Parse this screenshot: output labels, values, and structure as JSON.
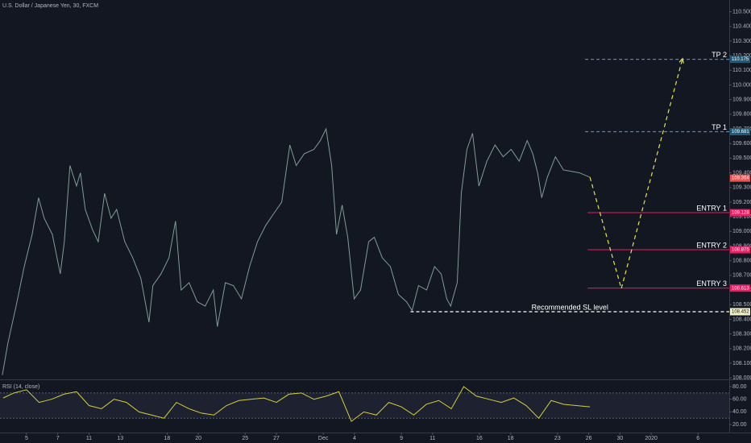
{
  "chart_data": [
    {
      "type": "line",
      "title": "U.S. Dollar / Japanese Yen, 30, FXCM",
      "color": "#7f9c97",
      "x": [
        -1.55,
        -1.19,
        -0.67,
        -0.15,
        0.36,
        0.77,
        1.13,
        1.65,
        2.16,
        2.42,
        2.78,
        3.2,
        3.45,
        3.76,
        4.23,
        4.59,
        5.0,
        5.41,
        5.77,
        6.29,
        6.8,
        7.32,
        7.84,
        8.09,
        8.61,
        9.12,
        9.54,
        9.9,
        10.41,
        10.93,
        11.44,
        11.96,
        12.22,
        12.73,
        13.25,
        13.76,
        14.28,
        14.79,
        15.31,
        15.82,
        16.34,
        16.86,
        17.27,
        17.78,
        18.4,
        18.81,
        19.18,
        19.54,
        19.85,
        20.21,
        20.57,
        20.98,
        21.39,
        21.91,
        22.27,
        22.78,
        23.3,
        23.81,
        24.33,
        24.69,
        25.1,
        25.62,
        26.13,
        26.55,
        26.91,
        27.16,
        27.58,
        27.84,
        28.2,
        28.56,
        28.97,
        29.48,
        30.0,
        30.52,
        31.03,
        31.55,
        32.06,
        32.42,
        32.73,
        32.99,
        33.35,
        33.87,
        34.38,
        34.9,
        35.41,
        36.08
      ],
      "values": [
        108.02,
        108.24,
        108.49,
        108.76,
        108.98,
        109.23,
        109.09,
        108.98,
        108.71,
        108.93,
        109.45,
        109.31,
        109.4,
        109.15,
        109.01,
        108.93,
        109.26,
        109.09,
        109.15,
        108.93,
        108.82,
        108.68,
        108.38,
        108.63,
        108.71,
        108.82,
        109.07,
        108.6,
        108.65,
        108.52,
        108.49,
        108.6,
        108.35,
        108.65,
        108.63,
        108.54,
        108.76,
        108.93,
        109.04,
        109.12,
        109.2,
        109.59,
        109.45,
        109.53,
        109.56,
        109.62,
        109.7,
        109.45,
        108.98,
        109.18,
        108.96,
        108.54,
        108.6,
        108.93,
        108.96,
        108.82,
        108.76,
        108.57,
        108.52,
        108.46,
        108.63,
        108.6,
        108.76,
        108.71,
        108.54,
        108.49,
        108.65,
        109.26,
        109.56,
        109.67,
        109.31,
        109.48,
        109.59,
        109.51,
        109.56,
        109.48,
        109.62,
        109.53,
        109.4,
        109.23,
        109.37,
        109.51,
        109.42,
        109.41,
        109.4,
        109.37
      ],
      "xlim": [
        -1.7,
        45
      ],
      "xticks": [
        {
          "value": 0,
          "label": "5"
        },
        {
          "value": 2,
          "label": "7"
        },
        {
          "value": 4,
          "label": "11"
        },
        {
          "value": 6,
          "label": "13"
        },
        {
          "value": 9,
          "label": "18"
        },
        {
          "value": 11,
          "label": "20"
        },
        {
          "value": 14,
          "label": "25"
        },
        {
          "value": 16,
          "label": "27"
        },
        {
          "value": 19,
          "label": "Dec"
        },
        {
          "value": 21,
          "label": "4"
        },
        {
          "value": 24,
          "label": "9"
        },
        {
          "value": 26,
          "label": "11"
        },
        {
          "value": 29,
          "label": "16"
        },
        {
          "value": 31,
          "label": "18"
        },
        {
          "value": 34,
          "label": "23"
        },
        {
          "value": 36,
          "label": "26"
        },
        {
          "value": 38,
          "label": "30"
        },
        {
          "value": 40,
          "label": "2020"
        },
        {
          "value": 43,
          "label": "6"
        }
      ],
      "ylim": [
        107.99,
        110.58
      ],
      "yticks": [
        {
          "value": 108,
          "label": "108.000"
        },
        {
          "value": 108.1,
          "label": "108.100"
        },
        {
          "value": 108.2,
          "label": "108.200"
        },
        {
          "value": 108.3,
          "label": "108.300"
        },
        {
          "value": 108.4,
          "label": "108.400"
        },
        {
          "value": 108.5,
          "label": "108.500"
        },
        {
          "value": 108.6,
          "label": "108.600"
        },
        {
          "value": 108.7,
          "label": "108.700"
        },
        {
          "value": 108.8,
          "label": "108.800"
        },
        {
          "value": 108.9,
          "label": "108.900"
        },
        {
          "value": 109,
          "label": "109.000"
        },
        {
          "value": 109.1,
          "label": "109.100"
        },
        {
          "value": 109.2,
          "label": "109.200"
        },
        {
          "value": 109.3,
          "label": "109.300"
        },
        {
          "value": 109.4,
          "label": "109.400"
        },
        {
          "value": 109.5,
          "label": "109.500"
        },
        {
          "value": 109.6,
          "label": "109.600"
        },
        {
          "value": 109.7,
          "label": "109.700"
        },
        {
          "value": 109.8,
          "label": "109.800"
        },
        {
          "value": 109.9,
          "label": "109.900"
        },
        {
          "value": 110,
          "label": "110.000"
        },
        {
          "value": 110.1,
          "label": "110.100"
        },
        {
          "value": 110.2,
          "label": "110.200"
        },
        {
          "value": 110.3,
          "label": "110.300"
        },
        {
          "value": 110.4,
          "label": "110.400"
        },
        {
          "value": 110.5,
          "label": "110.500"
        }
      ],
      "last_price": 109.364,
      "last_price_color": "#ef5350",
      "levels": [
        {
          "label": "TP 2",
          "value": 110.175,
          "start": 35.77,
          "style": "dashed",
          "color": "#4f86c6",
          "box_color": "#1e5a7a"
        },
        {
          "label": "TP 1",
          "value": 109.681,
          "start": 35.77,
          "style": "dashed",
          "color": "#4f86c6",
          "box_color": "#1e5a7a"
        },
        {
          "label": "ENTRY 1",
          "value": 109.128,
          "start": 35.93,
          "style": "solid",
          "color": "#e91e63",
          "box_color": "#e91e63"
        },
        {
          "label": "ENTRY 2",
          "value": 108.875,
          "start": 35.93,
          "style": "solid",
          "color": "#e91e63",
          "box_color": "#e91e63"
        },
        {
          "label": "ENTRY 3",
          "value": 108.613,
          "start": 35.93,
          "style": "solid",
          "color": "#e91e63",
          "box_color": "#e91e63"
        },
        {
          "label": "Recommended SL level",
          "value": 108.452,
          "start": 24.59,
          "style": "dashed",
          "color": "#ffffff",
          "box_color": "#f3f0c8"
        }
      ],
      "projection": {
        "x": [
          36.08,
          38.09,
          42.01
        ],
        "values": [
          109.37,
          108.61,
          110.18
        ],
        "color": "#e6e34a"
      }
    },
    {
      "type": "line",
      "title": "RSI (14, close)",
      "color": "#d4cf3a",
      "x": [
        -1.5,
        -0.8,
        0,
        0.8,
        1.6,
        2.4,
        3.2,
        4,
        4.8,
        5.6,
        6.4,
        7.2,
        8,
        8.8,
        9.6,
        10.4,
        11.2,
        12,
        12.8,
        13.6,
        14.4,
        15.2,
        16,
        16.8,
        17.6,
        18.4,
        19.2,
        20,
        20.8,
        21.6,
        22.4,
        23.2,
        24,
        24.8,
        25.6,
        26.4,
        27.2,
        28,
        28.8,
        29.6,
        30.4,
        31.2,
        32,
        32.8,
        33.6,
        34.4,
        35.2,
        36.08
      ],
      "values": [
        62,
        70,
        75,
        55,
        60,
        68,
        72,
        50,
        45,
        60,
        55,
        40,
        35,
        30,
        55,
        45,
        38,
        35,
        50,
        58,
        60,
        62,
        55,
        68,
        70,
        60,
        65,
        72,
        25,
        40,
        35,
        55,
        48,
        35,
        52,
        58,
        45,
        80,
        65,
        60,
        55,
        62,
        50,
        30,
        58,
        52,
        50,
        48
      ],
      "xlim": [
        -1.7,
        45
      ],
      "ylim": [
        7.3,
        90.2
      ],
      "yticks": [
        {
          "value": 20,
          "label": "20.00"
        },
        {
          "value": 40,
          "label": "40.00"
        },
        {
          "value": 60,
          "label": "60.00"
        },
        {
          "value": 80,
          "label": "80.00"
        }
      ],
      "band": [
        30,
        70
      ]
    }
  ]
}
